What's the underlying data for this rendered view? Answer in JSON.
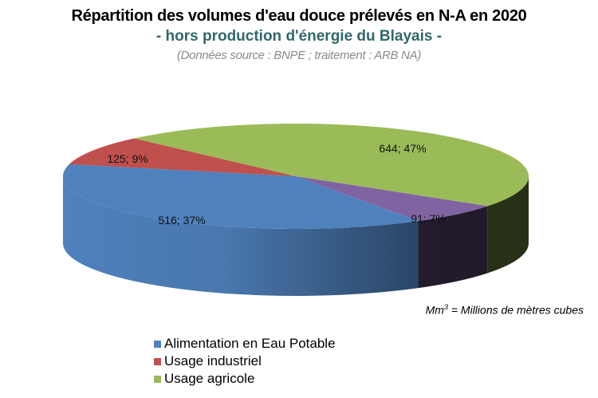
{
  "header": {
    "title": "Répartition des volumes d'eau douce prélevés en N-A en 2020",
    "subtitle": "- hors production d'énergie du Blayais -",
    "source": "(Données source : BNPE ; traitement : ARB NA)"
  },
  "unit_note": {
    "prefix": "Mm",
    "sup": "3",
    "suffix": " = Millions  de mètres cubes"
  },
  "chart_data": {
    "type": "pie",
    "style": "3d",
    "title": "Répartition des volumes d'eau douce prélevés en N-A en 2020",
    "subtitle": "- hors production d'énergie du Blayais -",
    "unit": "Mm3",
    "legend_position": "bottom-left",
    "slices": [
      {
        "name": "Usage agricole",
        "value": 644,
        "percent": 47,
        "label": "644; 47%",
        "color": "#9BBB59",
        "in_legend": true
      },
      {
        "name": "",
        "value": 91,
        "percent": 7,
        "label": "91; 7%",
        "color": "#8064A2",
        "in_legend": false
      },
      {
        "name": "Alimentation en Eau Potable",
        "value": 516,
        "percent": 37,
        "label": "516; 37%",
        "color": "#4F81BD",
        "in_legend": true
      },
      {
        "name": "Usage industriel",
        "value": 125,
        "percent": 9,
        "label": "125; 9%",
        "color": "#C0504D",
        "in_legend": true
      }
    ],
    "legend": [
      {
        "label": "Alimentation en Eau Potable",
        "color": "#4F81BD"
      },
      {
        "label": "Usage industriel",
        "color": "#C0504D"
      },
      {
        "label": "Usage agricole",
        "color": "#9BBB59"
      }
    ]
  }
}
